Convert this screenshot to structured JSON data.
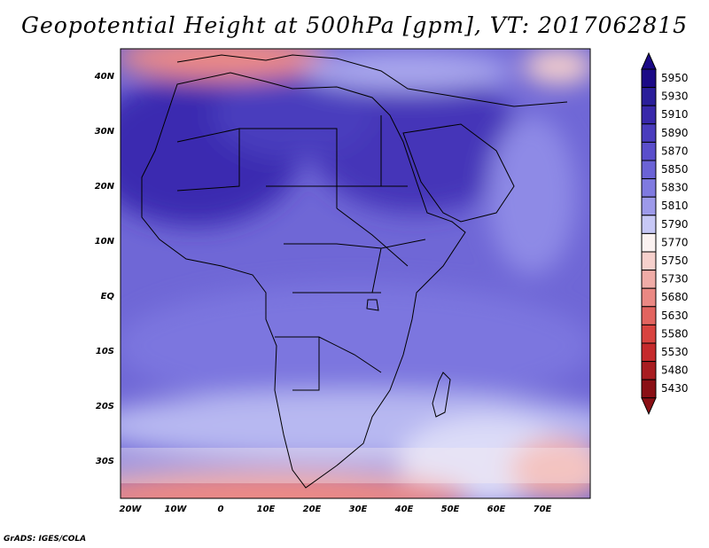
{
  "title": "Geopotential Height at 500hPa [gpm], VT: 2017062815",
  "credit": "GrADS: IGES/COLA",
  "map": {
    "lon_ticks": [
      "20W",
      "10W",
      "0",
      "10E",
      "20E",
      "30E",
      "40E",
      "50E",
      "60E",
      "70E"
    ],
    "lat_ticks": [
      "40N",
      "30N",
      "20N",
      "10N",
      "EQ",
      "10S",
      "20S",
      "30S"
    ]
  },
  "colorbar": {
    "levels": [
      "5950",
      "5930",
      "5910",
      "5890",
      "5870",
      "5850",
      "5830",
      "5810",
      "5790",
      "5770",
      "5750",
      "5730",
      "5680",
      "5630",
      "5580",
      "5530",
      "5480",
      "5430"
    ],
    "colors": [
      "#1b0a86",
      "#2a1e9a",
      "#3828aa",
      "#4a3cbd",
      "#5a4ecb",
      "#6b63d6",
      "#7f7ae0",
      "#9d9aea",
      "#c7c8f6",
      "#fbf2f1",
      "#f6d0cc",
      "#f0aca7",
      "#ea8883",
      "#e2645f",
      "#d8433f",
      "#c52a2c",
      "#a81c20",
      "#8a0f15"
    ]
  }
}
